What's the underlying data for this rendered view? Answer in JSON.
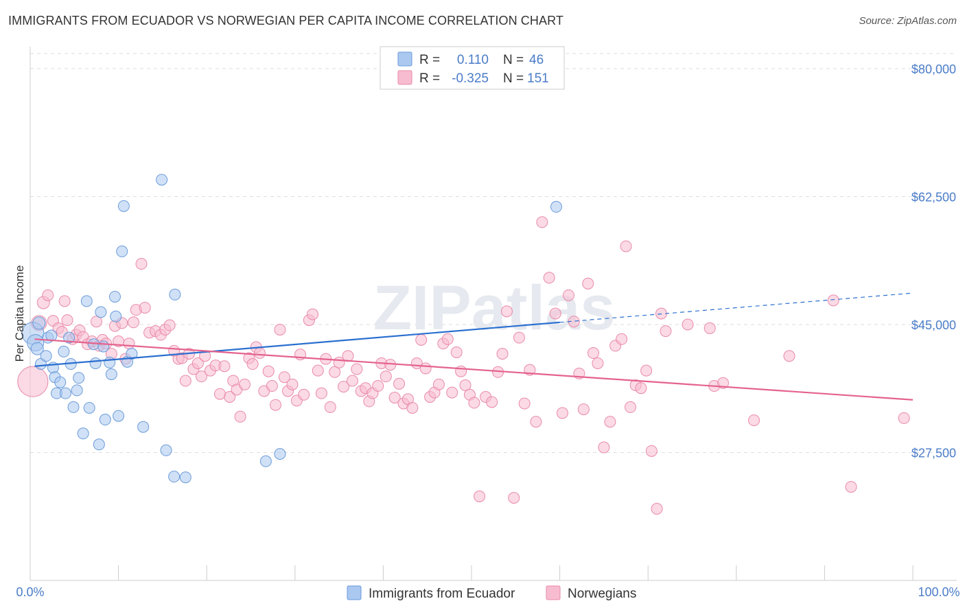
{
  "title": "IMMIGRANTS FROM ECUADOR VS NORWEGIAN PER CAPITA INCOME CORRELATION CHART",
  "source": "Source: ZipAtlas.com",
  "watermark": "ZIPatlas",
  "colors": {
    "blue_fill": "#aac8f0",
    "blue_stroke": "#6a9ad8",
    "blue_line": "#2a6fd0",
    "pink_fill": "#f7bcd0",
    "pink_stroke": "#e98aa8",
    "pink_line": "#e4628e",
    "axis_text": "#4a7cc8",
    "grid": "#dddddd"
  },
  "legend": {
    "rows": [
      {
        "r_label": "R =",
        "r_value": "0.110",
        "n_label": "N =",
        "n_value": "46"
      },
      {
        "r_label": "R =",
        "r_value": "-0.325",
        "n_label": "N =",
        "n_value": "151"
      }
    ]
  },
  "chart_data": {
    "type": "scatter",
    "title": "IMMIGRANTS FROM ECUADOR VS NORWEGIAN PER CAPITA INCOME CORRELATION CHART",
    "xlabel": "",
    "ylabel": "Per Capita Income",
    "xlim": [
      0,
      100
    ],
    "ylim": [
      10000,
      83000
    ],
    "x_tick_labels": [
      "0.0%",
      "100.0%"
    ],
    "y_ticks": [
      27500,
      45000,
      62500,
      80000
    ],
    "y_tick_labels": [
      "$27,500",
      "$45,000",
      "$62,500",
      "$80,000"
    ],
    "grid": true,
    "legend_position": "bottom-center",
    "series": [
      {
        "name": "Immigrants from Ecuador",
        "color": "blue",
        "r": 0.11,
        "n": 46,
        "trend": {
          "x0": 0.5,
          "y0": 39300,
          "x1": 60,
          "y1": 45300,
          "dash_x1": 100,
          "dash_y1": 49300
        },
        "points": [
          [
            0.3,
            43800,
            16
          ],
          [
            0.6,
            42500,
            12
          ],
          [
            0.8,
            41700,
            9
          ],
          [
            1.0,
            45200,
            9
          ],
          [
            1.2,
            39600,
            8
          ],
          [
            1.8,
            40700,
            8
          ],
          [
            2.0,
            43200,
            8
          ],
          [
            2.4,
            43500,
            8
          ],
          [
            2.6,
            39100,
            8
          ],
          [
            2.8,
            37800,
            8
          ],
          [
            3.0,
            35600,
            8
          ],
          [
            3.4,
            37100,
            8
          ],
          [
            3.8,
            41300,
            8
          ],
          [
            4.0,
            35600,
            8
          ],
          [
            4.4,
            43200,
            8
          ],
          [
            4.6,
            39600,
            8
          ],
          [
            4.9,
            33700,
            8
          ],
          [
            5.3,
            36000,
            8
          ],
          [
            5.5,
            37700,
            8
          ],
          [
            6.0,
            30100,
            8
          ],
          [
            6.4,
            48200,
            8
          ],
          [
            6.7,
            33600,
            8
          ],
          [
            7.2,
            42300,
            8
          ],
          [
            7.4,
            39700,
            8
          ],
          [
            7.8,
            28600,
            8
          ],
          [
            8.0,
            46700,
            8
          ],
          [
            8.3,
            42000,
            8
          ],
          [
            8.5,
            32000,
            8
          ],
          [
            9.0,
            39800,
            8
          ],
          [
            9.2,
            38200,
            8
          ],
          [
            9.6,
            48800,
            8
          ],
          [
            9.7,
            46100,
            8
          ],
          [
            10.0,
            32500,
            8
          ],
          [
            10.4,
            55000,
            8
          ],
          [
            10.6,
            61200,
            8
          ],
          [
            11.0,
            39900,
            8
          ],
          [
            11.5,
            41000,
            8
          ],
          [
            12.8,
            31000,
            8
          ],
          [
            14.9,
            64800,
            8
          ],
          [
            15.4,
            27800,
            8
          ],
          [
            16.3,
            24200,
            8
          ],
          [
            17.6,
            24100,
            8
          ],
          [
            16.4,
            49100,
            8
          ],
          [
            26.7,
            26300,
            8
          ],
          [
            28.3,
            27300,
            8
          ],
          [
            59.6,
            61100,
            8
          ]
        ]
      },
      {
        "name": "Norwegians",
        "color": "pink",
        "r": -0.325,
        "n": 151,
        "trend": {
          "x0": 0.5,
          "y0": 43000,
          "x1": 100,
          "y1": 34700
        },
        "points": [
          [
            0.3,
            37200,
            22
          ],
          [
            1.0,
            45200,
            11
          ],
          [
            1.5,
            48000,
            9
          ],
          [
            2.0,
            49000,
            8
          ],
          [
            2.6,
            45500,
            8
          ],
          [
            3.2,
            44500,
            8
          ],
          [
            3.6,
            44000,
            8
          ],
          [
            3.9,
            48200,
            8
          ],
          [
            4.2,
            45600,
            8
          ],
          [
            4.8,
            43000,
            8
          ],
          [
            5.2,
            43600,
            8
          ],
          [
            5.6,
            44200,
            8
          ],
          [
            6.0,
            43300,
            8
          ],
          [
            6.5,
            42300,
            8
          ],
          [
            7.0,
            42700,
            8
          ],
          [
            7.5,
            45400,
            8
          ],
          [
            7.8,
            42100,
            8
          ],
          [
            8.2,
            42900,
            8
          ],
          [
            8.6,
            42400,
            8
          ],
          [
            9.2,
            41000,
            8
          ],
          [
            9.6,
            44800,
            8
          ],
          [
            10.0,
            42700,
            8
          ],
          [
            10.4,
            45200,
            8
          ],
          [
            10.8,
            40300,
            8
          ],
          [
            11.2,
            42400,
            8
          ],
          [
            11.7,
            45300,
            8
          ],
          [
            12.0,
            47000,
            8
          ],
          [
            12.6,
            53300,
            8
          ],
          [
            13.0,
            47300,
            8
          ],
          [
            13.5,
            43900,
            8
          ],
          [
            14.2,
            44100,
            8
          ],
          [
            14.8,
            43600,
            8
          ],
          [
            15.3,
            44300,
            8
          ],
          [
            15.8,
            44900,
            8
          ],
          [
            16.3,
            41400,
            8
          ],
          [
            16.8,
            40300,
            8
          ],
          [
            17.2,
            40400,
            8
          ],
          [
            17.6,
            37300,
            8
          ],
          [
            18.0,
            41000,
            8
          ],
          [
            18.5,
            38900,
            8
          ],
          [
            19.0,
            39700,
            8
          ],
          [
            19.4,
            37900,
            8
          ],
          [
            19.8,
            40700,
            8
          ],
          [
            20.4,
            38700,
            8
          ],
          [
            21.0,
            39400,
            8
          ],
          [
            21.5,
            35500,
            8
          ],
          [
            22.0,
            39300,
            8
          ],
          [
            22.6,
            35100,
            8
          ],
          [
            23.0,
            37300,
            8
          ],
          [
            23.4,
            36100,
            8
          ],
          [
            23.8,
            32400,
            8
          ],
          [
            24.3,
            36800,
            8
          ],
          [
            24.8,
            40400,
            8
          ],
          [
            25.2,
            39600,
            8
          ],
          [
            25.6,
            41900,
            8
          ],
          [
            26.0,
            41100,
            8
          ],
          [
            26.5,
            35900,
            8
          ],
          [
            27.0,
            38600,
            8
          ],
          [
            27.4,
            36600,
            8
          ],
          [
            27.8,
            34000,
            8
          ],
          [
            28.3,
            44300,
            8
          ],
          [
            28.8,
            37800,
            8
          ],
          [
            29.2,
            35900,
            8
          ],
          [
            29.7,
            36800,
            8
          ],
          [
            30.2,
            34600,
            8
          ],
          [
            30.6,
            40900,
            8
          ],
          [
            31.0,
            35400,
            8
          ],
          [
            31.6,
            45600,
            8
          ],
          [
            32.0,
            46400,
            8
          ],
          [
            32.6,
            38700,
            8
          ],
          [
            33.0,
            35600,
            8
          ],
          [
            33.5,
            40300,
            8
          ],
          [
            34.0,
            33700,
            8
          ],
          [
            34.5,
            38500,
            8
          ],
          [
            35.0,
            39800,
            8
          ],
          [
            35.5,
            36500,
            8
          ],
          [
            36.0,
            40700,
            8
          ],
          [
            36.5,
            37300,
            8
          ],
          [
            37.0,
            38900,
            8
          ],
          [
            37.5,
            35900,
            8
          ],
          [
            38.0,
            36300,
            8
          ],
          [
            38.4,
            34500,
            8
          ],
          [
            38.8,
            35600,
            8
          ],
          [
            39.4,
            36600,
            8
          ],
          [
            39.8,
            39700,
            8
          ],
          [
            40.3,
            37900,
            8
          ],
          [
            40.8,
            39500,
            8
          ],
          [
            41.3,
            35000,
            8
          ],
          [
            41.8,
            36900,
            8
          ],
          [
            42.3,
            34200,
            8
          ],
          [
            42.8,
            34800,
            8
          ],
          [
            43.3,
            33600,
            8
          ],
          [
            43.8,
            39700,
            8
          ],
          [
            44.3,
            42900,
            8
          ],
          [
            44.8,
            39000,
            8
          ],
          [
            45.3,
            35100,
            8
          ],
          [
            45.8,
            35700,
            8
          ],
          [
            46.3,
            36800,
            8
          ],
          [
            46.8,
            42400,
            8
          ],
          [
            47.3,
            43000,
            8
          ],
          [
            47.8,
            35700,
            8
          ],
          [
            48.3,
            41200,
            8
          ],
          [
            48.8,
            38600,
            8
          ],
          [
            49.3,
            36700,
            8
          ],
          [
            49.8,
            35400,
            8
          ],
          [
            50.3,
            34300,
            8
          ],
          [
            50.9,
            21500,
            8
          ],
          [
            51.6,
            35100,
            8
          ],
          [
            52.3,
            34400,
            8
          ],
          [
            53.0,
            38500,
            8
          ],
          [
            53.5,
            41000,
            8
          ],
          [
            54.0,
            46800,
            8
          ],
          [
            54.8,
            21300,
            8
          ],
          [
            55.4,
            43200,
            8
          ],
          [
            56.0,
            34200,
            8
          ],
          [
            56.6,
            38800,
            8
          ],
          [
            57.3,
            31700,
            8
          ],
          [
            58.0,
            59000,
            8
          ],
          [
            58.8,
            51400,
            8
          ],
          [
            59.5,
            46500,
            8
          ],
          [
            60.3,
            32900,
            8
          ],
          [
            61.0,
            49000,
            8
          ],
          [
            61.6,
            45400,
            8
          ],
          [
            62.2,
            38300,
            8
          ],
          [
            62.7,
            33400,
            8
          ],
          [
            63.2,
            50600,
            8
          ],
          [
            63.8,
            41100,
            8
          ],
          [
            64.3,
            39700,
            8
          ],
          [
            65.0,
            28200,
            8
          ],
          [
            65.7,
            31700,
            8
          ],
          [
            66.3,
            42100,
            8
          ],
          [
            67.0,
            43000,
            8
          ],
          [
            67.5,
            55700,
            8
          ],
          [
            68.0,
            33700,
            8
          ],
          [
            68.6,
            36700,
            8
          ],
          [
            69.2,
            36300,
            8
          ],
          [
            69.8,
            38700,
            8
          ],
          [
            70.4,
            27700,
            8
          ],
          [
            71.0,
            19800,
            8
          ],
          [
            71.5,
            46500,
            8
          ],
          [
            72.0,
            44100,
            8
          ],
          [
            74.5,
            45000,
            8
          ],
          [
            77.0,
            44500,
            8
          ],
          [
            77.5,
            36600,
            8
          ],
          [
            78.5,
            37000,
            8
          ],
          [
            82.0,
            31900,
            8
          ],
          [
            86.0,
            40700,
            8
          ],
          [
            91.0,
            48300,
            8
          ],
          [
            93.0,
            22800,
            8
          ],
          [
            99.0,
            32200,
            8
          ]
        ]
      }
    ]
  },
  "bottom_legend": {
    "items": [
      {
        "label": "Immigrants from Ecuador"
      },
      {
        "label": "Norwegians"
      }
    ]
  }
}
